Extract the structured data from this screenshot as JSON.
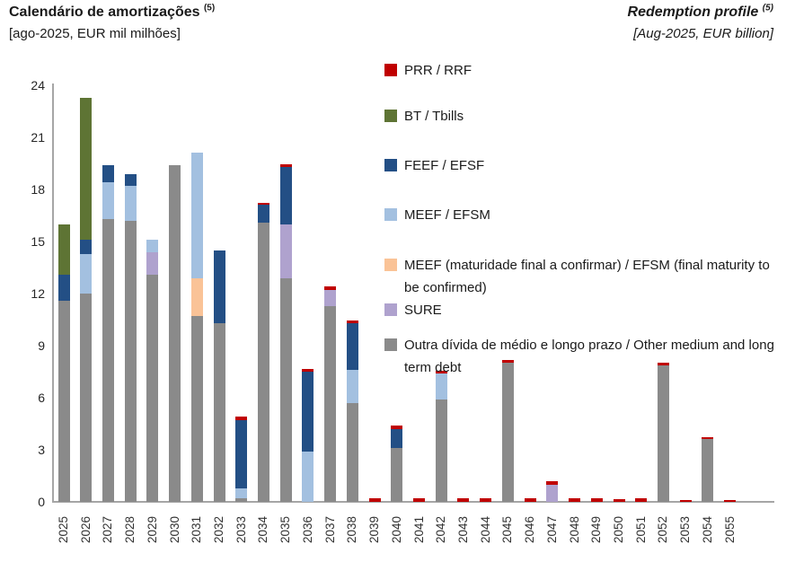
{
  "header": {
    "title_pt": "Calendário de amortizações",
    "title_pt_sup": "(5)",
    "subtitle_pt": "[ago-2025, EUR mil milhões]",
    "title_en": "Redemption profile",
    "title_en_sup": "(5)",
    "subtitle_en": "[Aug-2025, EUR billion]"
  },
  "colors": {
    "axis": "#a6a6a6",
    "background": "#ffffff",
    "rrf_red": "#C00000",
    "tbills_olive": "#5E7434",
    "efsf_darkblue": "#234F85",
    "efsm_lightblue": "#A3C0E0",
    "efsm_tbc_orange": "#FAC397",
    "sure_purple": "#AFA2CE",
    "other_gray": "#8A8A8A"
  },
  "chart_data": {
    "type": "bar",
    "stacked": true,
    "grid": false,
    "legend_position": "upper-right-overlay",
    "unit": "EUR billion (EUR mil milhões)",
    "ylim": [
      0,
      24
    ],
    "yticks": [
      0,
      3,
      6,
      9,
      12,
      15,
      18,
      21,
      24
    ],
    "series": [
      {
        "key": "rrf",
        "label": "PRR / RRF",
        "color": "#C00000"
      },
      {
        "key": "tbills",
        "label": "BT / Tbills",
        "color": "#5E7434"
      },
      {
        "key": "efsf",
        "label": "FEEF / EFSF",
        "color": "#234F85"
      },
      {
        "key": "efsm",
        "label": "MEEF / EFSM",
        "color": "#A3C0E0"
      },
      {
        "key": "efsm_tbc",
        "label": "MEEF (maturidade final a confirmar) / EFSM (final maturity to be confirmed)",
        "color": "#FAC397"
      },
      {
        "key": "sure",
        "label": "SURE",
        "color": "#AFA2CE"
      },
      {
        "key": "other",
        "label": "Outra dívida de médio e longo prazo / Other medium and long term debt",
        "color": "#8A8A8A"
      }
    ],
    "categories": [
      "2025",
      "2026",
      "2027",
      "2028",
      "2029",
      "2030",
      "2031",
      "2032",
      "2033",
      "2034",
      "2035",
      "2036",
      "2037",
      "2038",
      "2039",
      "2040",
      "2041",
      "2042",
      "2043",
      "2044",
      "2045",
      "2046",
      "2047",
      "2048",
      "2049",
      "2050",
      "2051",
      "2052",
      "2053",
      "2054",
      "2055"
    ],
    "bars": [
      {
        "year": "2025",
        "segments": [
          [
            "other",
            11.6
          ],
          [
            "efsf",
            1.5
          ],
          [
            "tbills",
            2.9
          ]
        ]
      },
      {
        "year": "2026",
        "segments": [
          [
            "other",
            12.0
          ],
          [
            "efsm",
            2.3
          ],
          [
            "efsf",
            0.8
          ],
          [
            "tbills",
            8.2
          ]
        ]
      },
      {
        "year": "2027",
        "segments": [
          [
            "other",
            16.3
          ],
          [
            "efsm",
            2.1
          ],
          [
            "efsf",
            1.0
          ]
        ]
      },
      {
        "year": "2028",
        "segments": [
          [
            "other",
            16.2
          ],
          [
            "efsm",
            2.0
          ],
          [
            "efsf",
            0.7
          ]
        ]
      },
      {
        "year": "2029",
        "segments": [
          [
            "other",
            13.1
          ],
          [
            "sure",
            1.3
          ],
          [
            "efsm",
            0.7
          ]
        ]
      },
      {
        "year": "2030",
        "segments": [
          [
            "other",
            19.4
          ]
        ]
      },
      {
        "year": "2031",
        "segments": [
          [
            "other",
            10.7
          ],
          [
            "efsm_tbc",
            2.2
          ],
          [
            "efsm",
            7.2
          ]
        ]
      },
      {
        "year": "2032",
        "segments": [
          [
            "other",
            10.3
          ],
          [
            "efsf",
            4.2
          ]
        ]
      },
      {
        "year": "2033",
        "segments": [
          [
            "other",
            0.2
          ],
          [
            "efsm",
            0.6
          ],
          [
            "efsf",
            3.9
          ],
          [
            "rrf",
            0.2
          ]
        ]
      },
      {
        "year": "2034",
        "segments": [
          [
            "other",
            16.1
          ],
          [
            "efsf",
            1.0
          ],
          [
            "rrf",
            0.15
          ]
        ]
      },
      {
        "year": "2035",
        "segments": [
          [
            "other",
            12.9
          ],
          [
            "sure",
            3.1
          ],
          [
            "efsf",
            3.3
          ],
          [
            "rrf",
            0.15
          ]
        ]
      },
      {
        "year": "2036",
        "segments": [
          [
            "efsm",
            2.9
          ],
          [
            "efsf",
            4.6
          ],
          [
            "rrf",
            0.15
          ]
        ]
      },
      {
        "year": "2037",
        "segments": [
          [
            "other",
            11.3
          ],
          [
            "sure",
            0.9
          ],
          [
            "rrf",
            0.2
          ]
        ]
      },
      {
        "year": "2038",
        "segments": [
          [
            "other",
            5.7
          ],
          [
            "efsm",
            1.9
          ],
          [
            "efsf",
            2.7
          ],
          [
            "rrf",
            0.15
          ]
        ]
      },
      {
        "year": "2039",
        "segments": [
          [
            "rrf",
            0.2
          ]
        ]
      },
      {
        "year": "2040",
        "segments": [
          [
            "other",
            3.1
          ],
          [
            "efsf",
            1.1
          ],
          [
            "rrf",
            0.2
          ]
        ]
      },
      {
        "year": "2041",
        "segments": [
          [
            "rrf",
            0.2
          ]
        ]
      },
      {
        "year": "2042",
        "segments": [
          [
            "other",
            5.9
          ],
          [
            "efsm",
            1.5
          ],
          [
            "rrf",
            0.15
          ]
        ]
      },
      {
        "year": "2043",
        "segments": [
          [
            "rrf",
            0.2
          ]
        ]
      },
      {
        "year": "2044",
        "segments": [
          [
            "rrf",
            0.2
          ]
        ]
      },
      {
        "year": "2045",
        "segments": [
          [
            "other",
            8.0
          ],
          [
            "rrf",
            0.15
          ]
        ]
      },
      {
        "year": "2046",
        "segments": [
          [
            "rrf",
            0.2
          ]
        ]
      },
      {
        "year": "2047",
        "segments": [
          [
            "sure",
            1.0
          ],
          [
            "rrf",
            0.2
          ]
        ]
      },
      {
        "year": "2048",
        "segments": [
          [
            "rrf",
            0.2
          ]
        ]
      },
      {
        "year": "2049",
        "segments": [
          [
            "rrf",
            0.2
          ]
        ]
      },
      {
        "year": "2050",
        "segments": [
          [
            "rrf",
            0.15
          ]
        ]
      },
      {
        "year": "2051",
        "segments": [
          [
            "rrf",
            0.2
          ]
        ]
      },
      {
        "year": "2052",
        "segments": [
          [
            "other",
            7.85
          ],
          [
            "rrf",
            0.15
          ]
        ]
      },
      {
        "year": "2053",
        "segments": [
          [
            "rrf",
            0.1
          ]
        ]
      },
      {
        "year": "2054",
        "segments": [
          [
            "other",
            3.6
          ],
          [
            "rrf",
            0.1
          ]
        ]
      },
      {
        "year": "2055",
        "segments": [
          [
            "rrf",
            0.1
          ]
        ]
      }
    ]
  },
  "legend_layout": {
    "tops": [
      66,
      117,
      172,
      227,
      283,
      333,
      372
    ]
  }
}
